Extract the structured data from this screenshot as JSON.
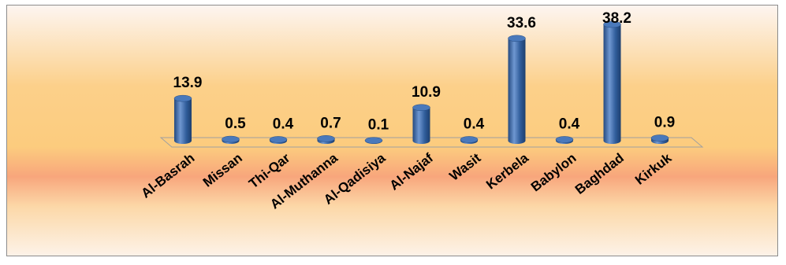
{
  "chart_data": {
    "type": "bar",
    "categories": [
      "Al-Basrah",
      "Missan",
      "Thi-Qar",
      "Al-Muthanna",
      "Al-Qadisiya",
      "Al-Najaf",
      "Wasit",
      "Kerbela",
      "Babylon",
      "Baghdad",
      "Kirkuk"
    ],
    "values": [
      13.9,
      0.5,
      0.4,
      0.7,
      0.1,
      10.9,
      0.4,
      33.6,
      0.4,
      38.2,
      0.9
    ],
    "value_labels": [
      "13.9",
      "0.5",
      "0.4",
      "0.7",
      "0.1",
      "10.9",
      "0.4",
      "33.6",
      "0.4",
      "38.2",
      "0.9"
    ],
    "title": "",
    "xlabel": "",
    "ylabel": "",
    "ylim": [
      0,
      38.2
    ],
    "bar_style": "3d-cylinder",
    "grid": false,
    "legend": "none",
    "colors": {
      "bar": "#2f5c9a",
      "bar_highlight": "#6f97d1",
      "bar_top": "#4a79bb",
      "floor_line": "#a0a0a0",
      "background_top": "#fdf5f1",
      "background_mid": "#fccc7e",
      "background_band": "#f8a67c",
      "background_bottom": "#fdf3ea",
      "frame_border": "#8c8c8c"
    }
  }
}
